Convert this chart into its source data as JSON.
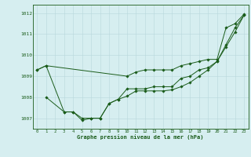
{
  "title": "Graphe pression niveau de la mer (hPa)",
  "background_color": "#d6eef0",
  "line_color": "#1a5c1a",
  "grid_color": "#b8d8dc",
  "xlim": [
    -0.5,
    23.5
  ],
  "ylim": [
    1006.5,
    1012.4
  ],
  "yticks": [
    1007,
    1008,
    1009,
    1010,
    1011,
    1012
  ],
  "xticks": [
    0,
    1,
    2,
    3,
    4,
    5,
    6,
    7,
    8,
    9,
    10,
    11,
    12,
    13,
    14,
    15,
    16,
    17,
    18,
    19,
    20,
    21,
    22,
    23
  ],
  "s1_x": [
    0,
    1,
    10,
    11,
    12,
    13,
    14,
    15,
    16,
    17,
    18,
    19,
    20,
    21,
    22,
    23
  ],
  "s1_y": [
    1009.3,
    1009.5,
    1009.0,
    1009.2,
    1009.3,
    1009.3,
    1009.3,
    1009.3,
    1009.5,
    1009.6,
    1009.7,
    1009.8,
    1009.8,
    1011.3,
    1011.5,
    1011.95
  ],
  "s2_x": [
    1,
    3,
    4,
    5,
    6,
    7,
    8,
    9,
    10,
    11,
    12,
    13,
    14,
    15,
    16,
    17,
    18,
    19,
    20,
    21,
    22,
    23
  ],
  "s2_y": [
    1008.0,
    1007.3,
    1007.3,
    1007.0,
    1007.0,
    1007.0,
    1007.7,
    1007.9,
    1008.05,
    1008.3,
    1008.3,
    1008.3,
    1008.3,
    1008.35,
    1008.5,
    1008.7,
    1009.0,
    1009.3,
    1009.7,
    1010.5,
    1011.3,
    1011.9
  ],
  "s3_x": [
    0,
    1,
    3,
    4,
    5,
    6,
    7,
    8,
    9,
    10,
    11,
    12,
    13,
    14,
    15,
    16,
    17,
    18,
    19,
    20,
    21,
    22,
    23
  ],
  "s3_y": [
    1009.3,
    1009.5,
    1007.3,
    1007.3,
    1006.9,
    1007.0,
    1007.0,
    1007.7,
    1007.9,
    1008.4,
    1008.4,
    1008.4,
    1008.5,
    1008.5,
    1008.5,
    1008.9,
    1009.0,
    1009.3,
    1009.4,
    1009.7,
    1010.4,
    1011.1,
    1011.9
  ]
}
